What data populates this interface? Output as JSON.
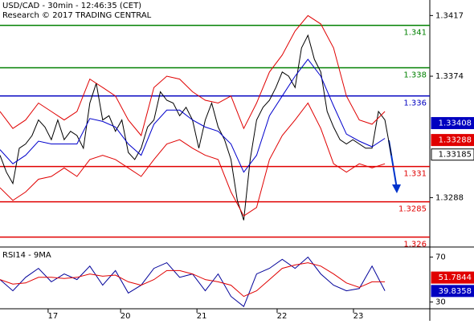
{
  "chart_data": [
    {
      "type": "line",
      "title": "USD/CAD - 30min - 12:46:35 (CET)",
      "subtitle": "Research © 2017 TRADING CENTRAL",
      "xlim": [
        0,
        67
      ],
      "ylim": [
        1.3253,
        1.3428
      ],
      "xticks": [
        {
          "value": 7.5,
          "label": "17"
        },
        {
          "value": 18.8,
          "label": "20"
        },
        {
          "value": 30.7,
          "label": "21"
        },
        {
          "value": 43.2,
          "label": "22"
        },
        {
          "value": 55.1,
          "label": "23"
        }
      ],
      "yticks": [
        1.3417,
        1.3374,
        1.3288
      ],
      "levels": [
        {
          "value": 1.341,
          "color": "#008000"
        },
        {
          "value": 1.338,
          "color": "#008000"
        },
        {
          "value": 1.336,
          "color": "#0000c0"
        },
        {
          "value": 1.331,
          "color": "#e00000"
        },
        {
          "value": 1.3285,
          "color": "#e00000"
        },
        {
          "value": 1.326,
          "color": "#e00000"
        }
      ],
      "markers": [
        {
          "value": 1.33408,
          "color": "#0000c0"
        },
        {
          "value": 1.33288,
          "color": "#e00000"
        },
        {
          "value": 1.33185,
          "color": "#ffffff"
        }
      ],
      "series": [
        {
          "color": "#000000",
          "x": [
            0,
            1,
            2,
            3,
            4,
            5,
            6,
            7,
            8,
            9,
            10,
            11,
            12,
            13,
            14,
            15,
            16,
            17,
            18,
            19,
            20,
            21,
            22,
            23,
            24,
            25,
            26,
            27,
            28,
            29,
            30,
            31,
            32,
            33,
            34,
            35,
            36,
            37,
            38,
            39,
            40,
            41,
            42,
            43,
            44,
            45,
            46,
            47,
            48,
            49,
            50,
            51,
            52,
            53,
            54,
            55,
            56,
            57,
            58,
            59,
            60,
            61
          ],
          "values": [
            1.3318,
            1.3306,
            1.3298,
            1.3323,
            1.3326,
            1.3332,
            1.3343,
            1.3338,
            1.3329,
            1.3343,
            1.3329,
            1.3335,
            1.3332,
            1.3323,
            1.3355,
            1.3369,
            1.3343,
            1.3346,
            1.3335,
            1.3343,
            1.332,
            1.3315,
            1.3323,
            1.3338,
            1.3343,
            1.3363,
            1.3357,
            1.3355,
            1.3346,
            1.3352,
            1.3343,
            1.3323,
            1.3343,
            1.3355,
            1.3338,
            1.3329,
            1.3315,
            1.3286,
            1.3272,
            1.3315,
            1.3343,
            1.3352,
            1.3357,
            1.3366,
            1.3377,
            1.3374,
            1.3366,
            1.3394,
            1.3403,
            1.3386,
            1.3377,
            1.3349,
            1.3338,
            1.3329,
            1.3326,
            1.3329,
            1.3326,
            1.3323,
            1.3323,
            1.3349,
            1.3343,
            1.3318
          ]
        },
        {
          "color": "#e00000",
          "x": [
            0,
            2,
            4,
            6,
            8,
            10,
            12,
            14,
            16,
            18,
            20,
            22,
            24,
            26,
            28,
            30,
            32,
            34,
            36,
            38,
            40,
            42,
            44,
            46,
            48,
            50,
            52,
            54,
            56,
            58,
            60
          ],
          "values": [
            1.3349,
            1.3337,
            1.3343,
            1.3355,
            1.3349,
            1.3343,
            1.3349,
            1.3372,
            1.3366,
            1.336,
            1.3343,
            1.3332,
            1.3366,
            1.3374,
            1.3372,
            1.3363,
            1.3357,
            1.3355,
            1.336,
            1.3337,
            1.3355,
            1.3377,
            1.3389,
            1.3406,
            1.3417,
            1.3411,
            1.3394,
            1.336,
            1.3343,
            1.334,
            1.3349
          ]
        },
        {
          "color": "#e00000",
          "x": [
            0,
            2,
            4,
            6,
            8,
            10,
            12,
            14,
            16,
            18,
            20,
            22,
            24,
            26,
            28,
            30,
            32,
            34,
            36,
            38,
            40,
            42,
            44,
            46,
            48,
            50,
            52,
            54,
            56,
            58,
            60
          ],
          "values": [
            1.3295,
            1.3286,
            1.3292,
            1.3301,
            1.3303,
            1.3309,
            1.3303,
            1.3315,
            1.3318,
            1.3315,
            1.3309,
            1.3303,
            1.3315,
            1.3326,
            1.3329,
            1.3323,
            1.3318,
            1.3315,
            1.3292,
            1.3275,
            1.3281,
            1.3315,
            1.3332,
            1.3343,
            1.3355,
            1.3337,
            1.3312,
            1.3306,
            1.3312,
            1.3309,
            1.3312
          ]
        },
        {
          "color": "#0000cc",
          "x": [
            0,
            2,
            4,
            6,
            8,
            10,
            12,
            14,
            16,
            18,
            20,
            22,
            24,
            26,
            28,
            30,
            32,
            34,
            36,
            38,
            40,
            42,
            44,
            46,
            48,
            50,
            52,
            54,
            56,
            58,
            60
          ],
          "values": [
            1.3322,
            1.3312,
            1.3318,
            1.3328,
            1.3326,
            1.3326,
            1.3326,
            1.3344,
            1.3342,
            1.3338,
            1.3326,
            1.3318,
            1.334,
            1.335,
            1.335,
            1.3343,
            1.3338,
            1.3335,
            1.3326,
            1.3306,
            1.3318,
            1.3346,
            1.336,
            1.3374,
            1.3386,
            1.3374,
            1.3353,
            1.3333,
            1.3328,
            1.3324,
            1.333
          ]
        }
      ]
    },
    {
      "type": "line",
      "title": "RSI14 - 9MA",
      "xlim": [
        0,
        67
      ],
      "ylim": [
        24,
        79
      ],
      "yticks": [
        70,
        30
      ],
      "markers": [
        {
          "value": 51.7844,
          "color": "#e00000"
        },
        {
          "value": 39.8358,
          "color": "#0000c0"
        }
      ],
      "series": [
        {
          "color": "#000099",
          "x": [
            0,
            2,
            4,
            6,
            8,
            10,
            12,
            14,
            16,
            18,
            20,
            22,
            24,
            26,
            28,
            30,
            32,
            34,
            36,
            38,
            40,
            42,
            44,
            46,
            48,
            50,
            52,
            54,
            56,
            58,
            60
          ],
          "values": [
            50,
            40,
            52,
            60,
            48,
            55,
            50,
            62,
            45,
            58,
            38,
            45,
            60,
            65,
            52,
            55,
            40,
            55,
            35,
            26,
            55,
            60,
            68,
            60,
            70,
            55,
            45,
            40,
            42,
            62,
            40
          ]
        },
        {
          "color": "#e00000",
          "x": [
            0,
            2,
            4,
            6,
            8,
            10,
            12,
            14,
            16,
            18,
            20,
            22,
            24,
            26,
            28,
            30,
            32,
            34,
            36,
            38,
            40,
            42,
            44,
            46,
            48,
            50,
            52,
            54,
            56,
            58,
            60
          ],
          "values": [
            50,
            46,
            47,
            52,
            52,
            51,
            52,
            55,
            53,
            54,
            48,
            45,
            50,
            58,
            58,
            55,
            50,
            48,
            45,
            35,
            40,
            50,
            60,
            63,
            65,
            62,
            55,
            47,
            43,
            48,
            48
          ]
        }
      ]
    }
  ]
}
